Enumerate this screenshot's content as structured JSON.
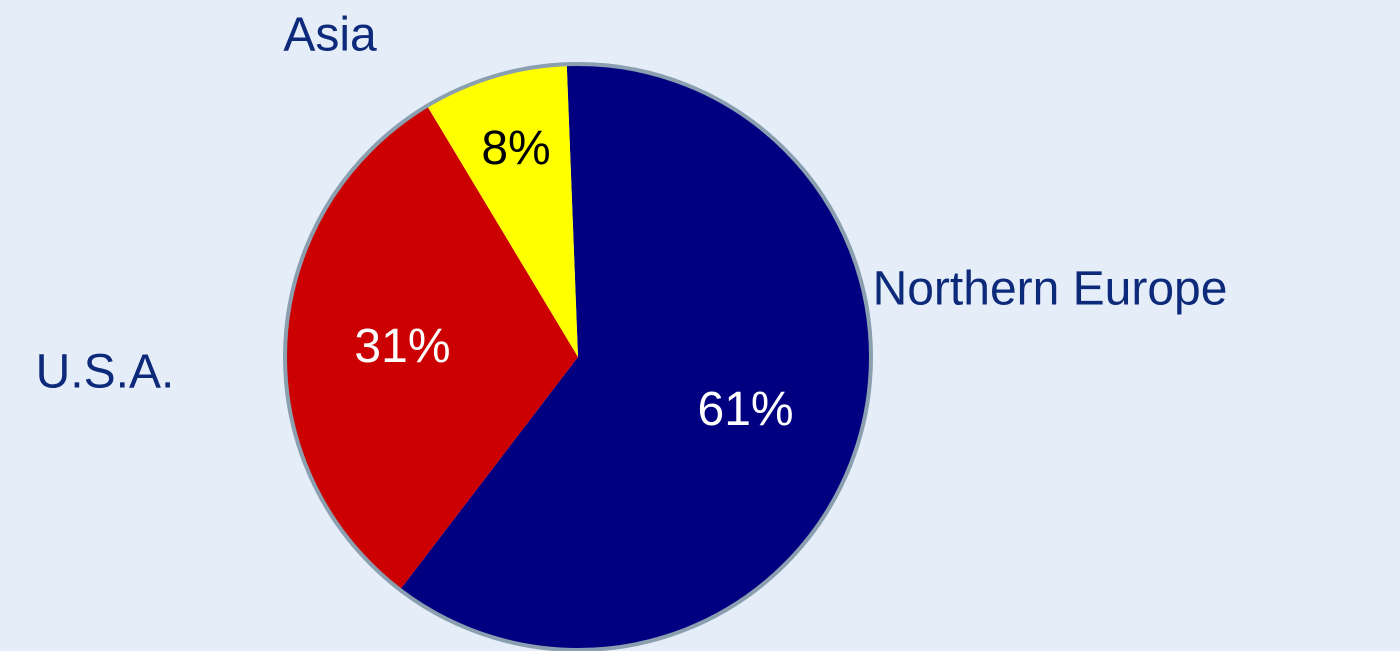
{
  "chart_data": {
    "type": "pie",
    "categories": [
      "Northern Europe",
      "U.S.A.",
      "Asia"
    ],
    "values": [
      61,
      31,
      8
    ],
    "value_labels": [
      "61%",
      "31%",
      "8%"
    ],
    "colors": [
      "#000080",
      "#cc0000",
      "#ffff00"
    ]
  }
}
